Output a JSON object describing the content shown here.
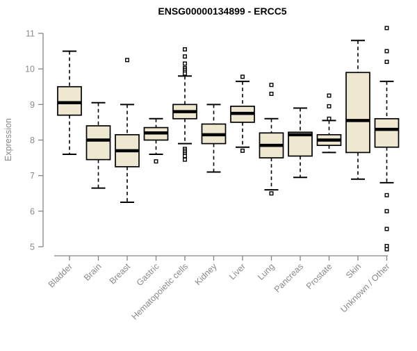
{
  "chart_data": {
    "type": "boxplot",
    "title": "ENSG00000134899 - ERCC5",
    "xlabel": "",
    "ylabel": "Expression",
    "ylim": [
      5,
      11
    ],
    "yticks": [
      5,
      6,
      7,
      8,
      9,
      10,
      11
    ],
    "grid": false,
    "legend": "none",
    "categories": [
      "Bladder",
      "Brain",
      "Breast",
      "Gastric",
      "Hematopoietic cells",
      "Kidney",
      "Liver",
      "Lung",
      "Pancreas",
      "Prostate",
      "Skin",
      "Unknown / Other"
    ],
    "boxes": [
      {
        "category": "Bladder",
        "whisker_low": 7.6,
        "q1": 8.7,
        "median": 9.05,
        "q3": 9.5,
        "whisker_high": 10.5,
        "outliers": []
      },
      {
        "category": "Brain",
        "whisker_low": 6.65,
        "q1": 7.45,
        "median": 8.0,
        "q3": 8.4,
        "whisker_high": 9.05,
        "outliers": []
      },
      {
        "category": "Breast",
        "whisker_low": 6.25,
        "q1": 7.25,
        "median": 7.7,
        "q3": 8.15,
        "whisker_high": 9.0,
        "outliers": [
          10.25
        ]
      },
      {
        "category": "Gastric",
        "whisker_low": 7.6,
        "q1": 8.0,
        "median": 8.2,
        "q3": 8.35,
        "whisker_high": 8.6,
        "outliers": [
          7.4
        ]
      },
      {
        "category": "Hematopoietic cells",
        "whisker_low": 7.9,
        "q1": 8.6,
        "median": 8.8,
        "q3": 9.0,
        "whisker_high": 9.8,
        "outliers": [
          10.55,
          10.35,
          10.15,
          10.02,
          9.97,
          9.92,
          9.87,
          7.75,
          7.7,
          7.65,
          7.6,
          7.55,
          7.45
        ]
      },
      {
        "category": "Kidney",
        "whisker_low": 7.1,
        "q1": 7.9,
        "median": 8.15,
        "q3": 8.45,
        "whisker_high": 9.0,
        "outliers": []
      },
      {
        "category": "Liver",
        "whisker_low": 7.8,
        "q1": 8.5,
        "median": 8.75,
        "q3": 8.95,
        "whisker_high": 9.65,
        "outliers": [
          9.78,
          7.7
        ]
      },
      {
        "category": "Lung",
        "whisker_low": 6.6,
        "q1": 7.5,
        "median": 7.85,
        "q3": 8.2,
        "whisker_high": 8.6,
        "outliers": [
          9.55,
          9.3,
          6.5
        ]
      },
      {
        "category": "Pancreas",
        "whisker_low": 6.95,
        "q1": 7.55,
        "median": 8.15,
        "q3": 8.22,
        "whisker_high": 8.9,
        "outliers": []
      },
      {
        "category": "Prostate",
        "whisker_low": 7.65,
        "q1": 7.85,
        "median": 8.0,
        "q3": 8.15,
        "whisker_high": 8.55,
        "outliers": [
          9.25,
          8.95,
          8.6
        ]
      },
      {
        "category": "Skin",
        "whisker_low": 6.9,
        "q1": 7.65,
        "median": 8.55,
        "q3": 9.9,
        "whisker_high": 10.8,
        "outliers": []
      },
      {
        "category": "Unknown / Other",
        "whisker_low": 6.8,
        "q1": 7.8,
        "median": 8.3,
        "q3": 8.6,
        "whisker_high": 9.65,
        "outliers": [
          11.15,
          10.5,
          10.2,
          6.45,
          6.0,
          5.5,
          5.02,
          4.93
        ]
      }
    ],
    "colors": {
      "box_fill": "#EEE8D0",
      "box_border": "#000000",
      "median": "#000000",
      "whisker": "#000000",
      "axis": "#848484",
      "tick_text": "#8a8a8a",
      "title_text": "#000000",
      "background": "#ffffff"
    }
  }
}
